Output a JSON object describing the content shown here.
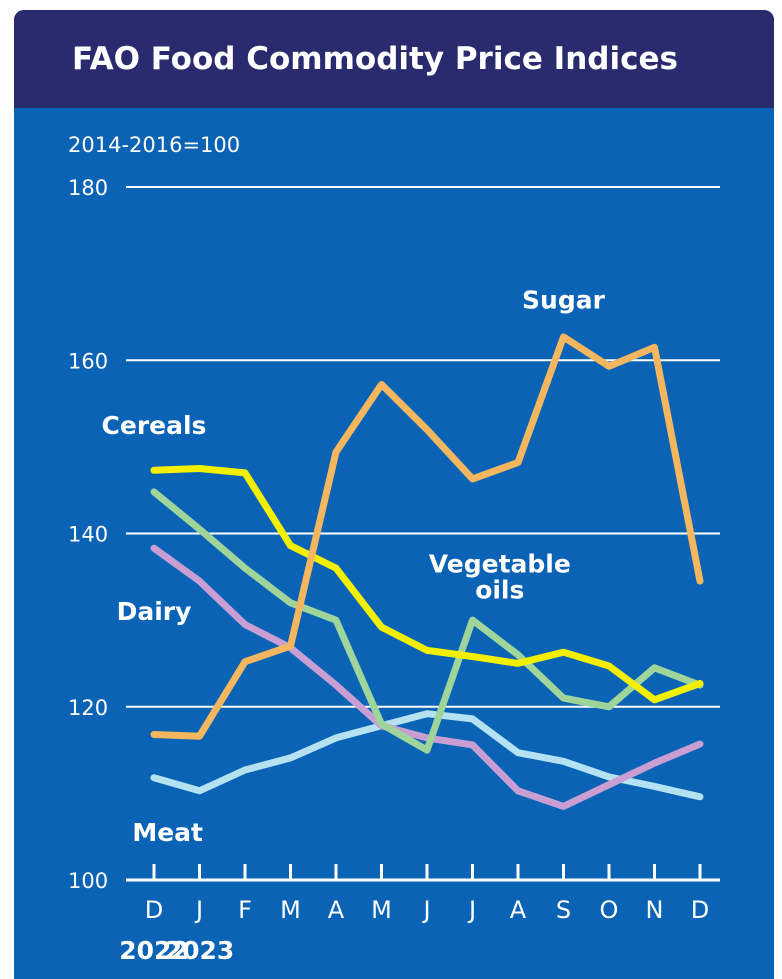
{
  "chart_data": {
    "type": "line",
    "title": "FAO Food Commodity Price Indices",
    "unit_label": "2014-2016=100",
    "categories": [
      "D",
      "J",
      "F",
      "M",
      "A",
      "M",
      "J",
      "J",
      "A",
      "S",
      "O",
      "N",
      "D"
    ],
    "year_labels": [
      {
        "text": "2022",
        "index": 0
      },
      {
        "text": "2023",
        "index": 1
      }
    ],
    "yticks": [
      100,
      120,
      140,
      160,
      180
    ],
    "ylim": [
      100,
      180
    ],
    "grid": true,
    "series": [
      {
        "name": "Sugar",
        "color": "#f4b65e",
        "label_anchor_index": 9,
        "label_value": 166,
        "values": [
          116.8,
          116.6,
          125.2,
          127.0,
          149.4,
          157.2,
          152.0,
          146.3,
          148.2,
          162.7,
          159.3,
          161.5,
          134.5
        ]
      },
      {
        "name": "Cereals",
        "color": "#f2f000",
        "label_anchor_index": 0,
        "label_value": 151.5,
        "values": [
          147.3,
          147.5,
          147.0,
          138.6,
          136.0,
          129.2,
          126.5,
          125.8,
          125.0,
          126.3,
          124.7,
          120.8,
          122.7
        ]
      },
      {
        "name": "Vegetable oils",
        "label_lines": [
          "Vegetable",
          "oils"
        ],
        "color": "#9fd49a",
        "label_anchor_index": 7.6,
        "label_value": 135.5,
        "values": [
          144.8,
          140.5,
          136.0,
          132.0,
          130.0,
          118.0,
          115.0,
          130.0,
          126.0,
          121.0,
          120.0,
          124.5,
          122.5
        ]
      },
      {
        "name": "Dairy",
        "color": "#c99fd3",
        "label_anchor_index": 0,
        "label_value": 130,
        "values": [
          138.3,
          134.5,
          129.5,
          126.8,
          122.5,
          117.8,
          116.4,
          115.6,
          110.3,
          108.5,
          111.0,
          113.5,
          115.7
        ]
      },
      {
        "name": "Meat",
        "color": "#b4e2f3",
        "label_anchor_index": 0.3,
        "label_value": 104.5,
        "values": [
          111.8,
          110.3,
          112.7,
          114.1,
          116.4,
          117.8,
          119.2,
          118.6,
          114.7,
          113.7,
          111.9,
          110.8,
          109.6
        ]
      }
    ]
  }
}
